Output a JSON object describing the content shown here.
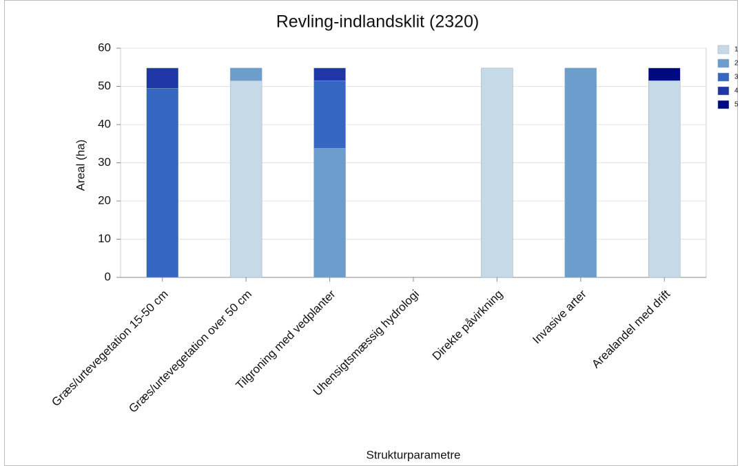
{
  "chart_data": {
    "type": "stacked_bar",
    "title": "Revling-indlandsklit (2320)",
    "x_label": "Strukturparametre",
    "y_label": "Areal (ha)",
    "categories": [
      "Græs/urtevegetation 15-50 cm",
      "Græs/urtevegetation over 50 cm",
      "Tilgroning med vedplanter",
      "Uhensigtsmæssig hydrologi",
      "Direkte påvirkning",
      "Invasive arter",
      "Arealandel med drift"
    ],
    "series": [
      {
        "name": "1",
        "color": "#c5d9e6",
        "values": [
          null,
          51.5,
          null,
          null,
          54.8,
          null,
          51.5
        ]
      },
      {
        "name": "2",
        "color": "#6c9dcc",
        "values": [
          null,
          3.3,
          33.8,
          null,
          null,
          54.8,
          null
        ]
      },
      {
        "name": "3",
        "color": "#3566c2",
        "values": [
          49.5,
          null,
          17.7,
          null,
          null,
          null,
          null
        ]
      },
      {
        "name": "4",
        "color": "#1f36a6",
        "values": [
          5.3,
          null,
          3.3,
          null,
          null,
          null,
          null
        ]
      },
      {
        "name": "5",
        "color": "#000a80",
        "values": [
          null,
          null,
          null,
          null,
          null,
          null,
          3.3
        ]
      }
    ],
    "ylim": [
      0,
      60
    ],
    "yticks": [
      0,
      10,
      20,
      30,
      40,
      50,
      60
    ],
    "grid": true,
    "legend": "right"
  }
}
